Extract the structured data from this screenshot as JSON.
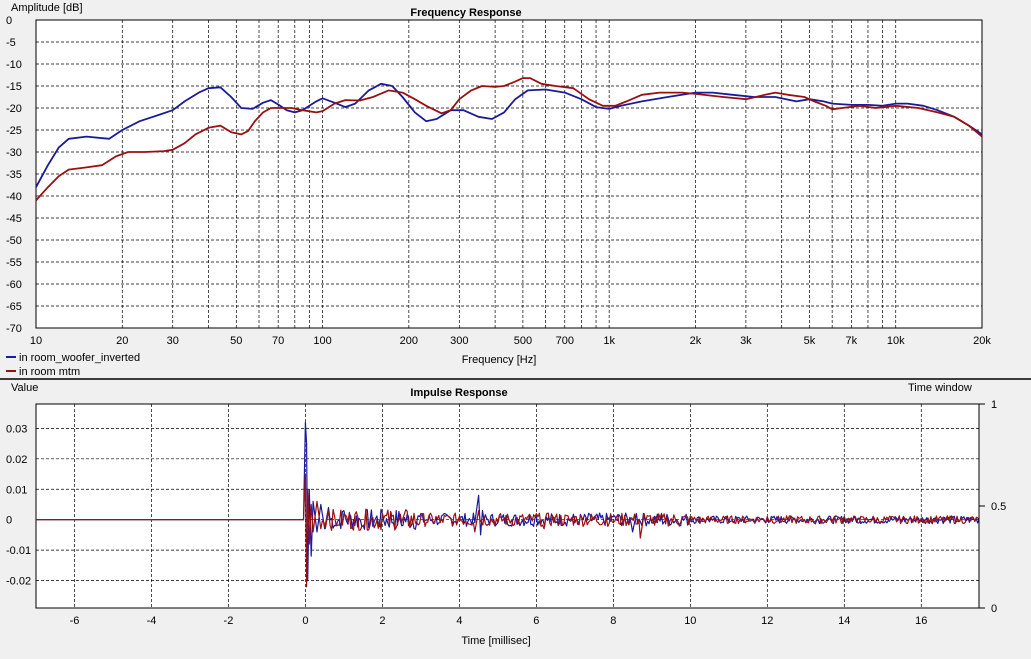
{
  "colors": {
    "series1": "#1a1a9c",
    "series2": "#9a1010",
    "background": "#f0f0f0",
    "plot_bg": "#ffffff",
    "grid": "#000000"
  },
  "chart_data": [
    {
      "type": "line",
      "title": "Frequency Response",
      "ylabel": "Amplitude [dB]",
      "xlabel": "Frequency [Hz]",
      "xscale": "log",
      "xlim": [
        10,
        20000
      ],
      "ylim": [
        -70,
        0
      ],
      "grid": true,
      "legend": "bottom-left",
      "y_ticks": [
        0,
        -5,
        -10,
        -15,
        -20,
        -25,
        -30,
        -35,
        -40,
        -45,
        -50,
        -55,
        -60,
        -65,
        -70
      ],
      "x_ticks": [
        {
          "v": 10,
          "label": "10"
        },
        {
          "v": 20,
          "label": "20"
        },
        {
          "v": 30,
          "label": "30"
        },
        {
          "v": 50,
          "label": "50"
        },
        {
          "v": 70,
          "label": "70"
        },
        {
          "v": 100,
          "label": "100"
        },
        {
          "v": 200,
          "label": "200"
        },
        {
          "v": 300,
          "label": "300"
        },
        {
          "v": 500,
          "label": "500"
        },
        {
          "v": 700,
          "label": "700"
        },
        {
          "v": 1000,
          "label": "1k"
        },
        {
          "v": 2000,
          "label": "2k"
        },
        {
          "v": 3000,
          "label": "3k"
        },
        {
          "v": 5000,
          "label": "5k"
        },
        {
          "v": 7000,
          "label": "7k"
        },
        {
          "v": 10000,
          "label": "10k"
        },
        {
          "v": 20000,
          "label": "20k"
        }
      ],
      "series": [
        {
          "name": "in room_woofer_inverted",
          "color": "#1a1a9c",
          "points": [
            [
              10,
              -38
            ],
            [
              11,
              -33
            ],
            [
              12,
              -29
            ],
            [
              13,
              -27
            ],
            [
              15,
              -26.5
            ],
            [
              18,
              -27
            ],
            [
              20,
              -25
            ],
            [
              23,
              -23
            ],
            [
              27,
              -21.5
            ],
            [
              30,
              -20.5
            ],
            [
              33,
              -18.5
            ],
            [
              37,
              -16.5
            ],
            [
              40,
              -15.5
            ],
            [
              44,
              -15.3
            ],
            [
              48,
              -17.5
            ],
            [
              52,
              -20
            ],
            [
              57,
              -20.2
            ],
            [
              62,
              -18.8
            ],
            [
              66,
              -18.2
            ],
            [
              70,
              -19.2
            ],
            [
              75,
              -20.5
            ],
            [
              80,
              -21
            ],
            [
              85,
              -20.5
            ],
            [
              95,
              -18.5
            ],
            [
              100,
              -17.8
            ],
            [
              110,
              -18.8
            ],
            [
              120,
              -19.8
            ],
            [
              130,
              -19
            ],
            [
              145,
              -16
            ],
            [
              160,
              -14.5
            ],
            [
              175,
              -15
            ],
            [
              190,
              -17.5
            ],
            [
              210,
              -21
            ],
            [
              230,
              -23
            ],
            [
              250,
              -22.5
            ],
            [
              280,
              -20.5
            ],
            [
              310,
              -20.5
            ],
            [
              350,
              -22
            ],
            [
              390,
              -22.5
            ],
            [
              430,
              -21
            ],
            [
              470,
              -18
            ],
            [
              520,
              -16
            ],
            [
              600,
              -15.8
            ],
            [
              700,
              -16.5
            ],
            [
              800,
              -18
            ],
            [
              900,
              -19.8
            ],
            [
              1000,
              -20.2
            ],
            [
              1100,
              -19.5
            ],
            [
              1300,
              -18.5
            ],
            [
              1600,
              -17.5
            ],
            [
              2000,
              -16.5
            ],
            [
              2300,
              -16.5
            ],
            [
              2700,
              -17
            ],
            [
              3200,
              -17.5
            ],
            [
              3800,
              -17.5
            ],
            [
              4500,
              -18.5
            ],
            [
              5000,
              -18
            ],
            [
              5600,
              -18.5
            ],
            [
              6000,
              -19
            ],
            [
              7000,
              -19.3
            ],
            [
              8000,
              -19.3
            ],
            [
              9000,
              -19.5
            ],
            [
              10000,
              -19
            ],
            [
              11000,
              -19
            ],
            [
              12500,
              -19.5
            ],
            [
              14000,
              -20.5
            ],
            [
              16000,
              -22
            ],
            [
              18000,
              -24
            ],
            [
              20000,
              -26
            ]
          ]
        },
        {
          "name": "in room mtm",
          "color": "#9a1010",
          "points": [
            [
              10,
              -41
            ],
            [
              11,
              -38
            ],
            [
              12,
              -35.5
            ],
            [
              13,
              -34
            ],
            [
              15,
              -33.5
            ],
            [
              17,
              -33
            ],
            [
              19,
              -31
            ],
            [
              21,
              -30
            ],
            [
              24,
              -30
            ],
            [
              28,
              -29.8
            ],
            [
              30,
              -29.5
            ],
            [
              33,
              -28
            ],
            [
              36,
              -26
            ],
            [
              40,
              -24.5
            ],
            [
              44,
              -24
            ],
            [
              48,
              -25.5
            ],
            [
              52,
              -26
            ],
            [
              55,
              -25.2
            ],
            [
              58,
              -23
            ],
            [
              62,
              -21
            ],
            [
              66,
              -20
            ],
            [
              72,
              -20
            ],
            [
              78,
              -20
            ],
            [
              85,
              -20.5
            ],
            [
              95,
              -21
            ],
            [
              100,
              -20.7
            ],
            [
              110,
              -19
            ],
            [
              120,
              -18.2
            ],
            [
              135,
              -18.3
            ],
            [
              150,
              -17.5
            ],
            [
              170,
              -16
            ],
            [
              190,
              -16.5
            ],
            [
              210,
              -18
            ],
            [
              230,
              -19.5
            ],
            [
              260,
              -21.2
            ],
            [
              280,
              -20.5
            ],
            [
              300,
              -18
            ],
            [
              330,
              -16
            ],
            [
              360,
              -15
            ],
            [
              400,
              -15.2
            ],
            [
              430,
              -15
            ],
            [
              470,
              -14
            ],
            [
              500,
              -13.2
            ],
            [
              530,
              -13.2
            ],
            [
              580,
              -14.5
            ],
            [
              650,
              -15
            ],
            [
              750,
              -15.5
            ],
            [
              850,
              -18
            ],
            [
              950,
              -19.5
            ],
            [
              1050,
              -19.5
            ],
            [
              1150,
              -18.5
            ],
            [
              1300,
              -17
            ],
            [
              1500,
              -16.5
            ],
            [
              1800,
              -16.5
            ],
            [
              2000,
              -16.8
            ],
            [
              2500,
              -17.5
            ],
            [
              3000,
              -18
            ],
            [
              3500,
              -17
            ],
            [
              3800,
              -16.5
            ],
            [
              4200,
              -17
            ],
            [
              4800,
              -17.5
            ],
            [
              5200,
              -18.5
            ],
            [
              5700,
              -19.5
            ],
            [
              6000,
              -20.3
            ],
            [
              6500,
              -20
            ],
            [
              7500,
              -19.5
            ],
            [
              8500,
              -20
            ],
            [
              10000,
              -19.5
            ],
            [
              12000,
              -20
            ],
            [
              14000,
              -21
            ],
            [
              16000,
              -22
            ],
            [
              18000,
              -24
            ],
            [
              20000,
              -26.5
            ]
          ]
        }
      ]
    },
    {
      "type": "line",
      "title": "Impulse Response",
      "ylabel": "Value",
      "xlabel": "Time [millisec]",
      "xlim": [
        -7,
        17.5
      ],
      "ylim": [
        -0.029,
        0.038
      ],
      "secondary_axis_label": "Time window",
      "secondary_ylim": [
        0,
        1
      ],
      "secondary_ticks": [
        {
          "v": 1,
          "label": "1"
        },
        {
          "v": 0.5,
          "label": "0.5"
        },
        {
          "v": 0,
          "label": "0"
        }
      ],
      "grid": true,
      "y_ticks": [
        {
          "v": 0.03,
          "label": "0.03"
        },
        {
          "v": 0.02,
          "label": "0.02"
        },
        {
          "v": 0.01,
          "label": "0.01"
        },
        {
          "v": 0,
          "label": "0"
        },
        {
          "v": -0.01,
          "label": "-0.01"
        },
        {
          "v": -0.02,
          "label": "-0.02"
        }
      ],
      "x_ticks": [
        {
          "v": -6,
          "label": "-6"
        },
        {
          "v": -4,
          "label": "-4"
        },
        {
          "v": -2,
          "label": "-2"
        },
        {
          "v": 0,
          "label": "0"
        },
        {
          "v": 2,
          "label": "2"
        },
        {
          "v": 4,
          "label": "4"
        },
        {
          "v": 6,
          "label": "6"
        },
        {
          "v": 8,
          "label": "8"
        },
        {
          "v": 10,
          "label": "10"
        },
        {
          "v": 12,
          "label": "12"
        },
        {
          "v": 14,
          "label": "14"
        },
        {
          "v": 16,
          "label": "16"
        }
      ],
      "series": [
        {
          "name": "in room_woofer_inverted",
          "color": "#1a1a9c",
          "points": [
            [
              -7,
              0
            ],
            [
              -0.05,
              0
            ],
            [
              0,
              0.032
            ],
            [
              0.03,
              0.025
            ],
            [
              0.06,
              -0.02
            ],
            [
              0.1,
              0.01
            ],
            [
              0.15,
              -0.012
            ],
            [
              0.2,
              0.006
            ],
            [
              0.3,
              -0.004
            ],
            [
              0.4,
              0.005
            ],
            [
              0.5,
              -0.003
            ],
            [
              0.6,
              0.004
            ],
            [
              0.8,
              -0.002
            ],
            [
              1,
              0.003
            ],
            [
              1.5,
              -0.002
            ],
            [
              2,
              0.002
            ],
            [
              2.5,
              -0.002
            ],
            [
              3,
              0.002
            ],
            [
              3.5,
              -0.001
            ],
            [
              4,
              0.001
            ],
            [
              4.4,
              -0.001
            ],
            [
              4.5,
              0.008
            ],
            [
              4.55,
              -0.005
            ],
            [
              4.6,
              0.003
            ],
            [
              5,
              -0.001
            ],
            [
              6,
              0.001
            ],
            [
              7,
              -0.001
            ],
            [
              8,
              0.001
            ],
            [
              8.5,
              -0.004
            ],
            [
              8.6,
              0.002
            ],
            [
              9,
              -0.001
            ],
            [
              10,
              0.001
            ],
            [
              11,
              -0.001
            ],
            [
              12,
              0.001
            ],
            [
              13,
              -0.001
            ],
            [
              14,
              0.001
            ],
            [
              15,
              -0.001
            ],
            [
              16,
              0.0005
            ],
            [
              17,
              -0.0005
            ],
            [
              17.5,
              0
            ]
          ]
        },
        {
          "name": "in room mtm",
          "color": "#9a1010",
          "points": [
            [
              -7,
              0
            ],
            [
              -0.05,
              0
            ],
            [
              0,
              0.015
            ],
            [
              0.03,
              -0.022
            ],
            [
              0.06,
              0.01
            ],
            [
              0.1,
              -0.008
            ],
            [
              0.15,
              0.005
            ],
            [
              0.2,
              -0.004
            ],
            [
              0.3,
              0.006
            ],
            [
              0.4,
              -0.003
            ],
            [
              0.6,
              0.003
            ],
            [
              0.8,
              -0.002
            ],
            [
              1,
              0.002
            ],
            [
              1.5,
              -0.002
            ],
            [
              2,
              0.002
            ],
            [
              2.5,
              -0.001
            ],
            [
              3,
              0.001
            ],
            [
              3.5,
              -0.001
            ],
            [
              4,
              0.001
            ],
            [
              4.4,
              -0.004
            ],
            [
              4.5,
              0.003
            ],
            [
              5,
              -0.001
            ],
            [
              6,
              0.002
            ],
            [
              6.2,
              -0.003
            ],
            [
              7,
              0.001
            ],
            [
              8,
              -0.001
            ],
            [
              8.7,
              -0.006
            ],
            [
              8.8,
              0.002
            ],
            [
              9,
              -0.001
            ],
            [
              10,
              0.001
            ],
            [
              11,
              -0.001
            ],
            [
              12,
              0.001
            ],
            [
              13,
              -0.001
            ],
            [
              14,
              0.001
            ],
            [
              15,
              -0.001
            ],
            [
              16,
              0.0005
            ],
            [
              17,
              -0.0005
            ],
            [
              17.5,
              0
            ]
          ]
        }
      ]
    }
  ]
}
